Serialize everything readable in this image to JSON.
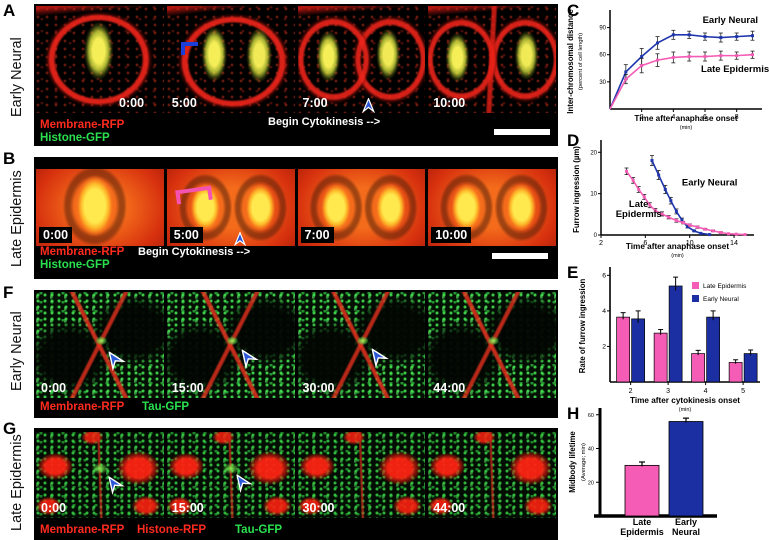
{
  "letters": {
    "C": "C",
    "D": "D",
    "E": "E",
    "H": "H"
  },
  "panels": {
    "A": {
      "letter": "A",
      "side_label": "Early Neural",
      "frames": [
        {
          "time": "0:00"
        },
        {
          "time": "5:00"
        },
        {
          "time": "7:00"
        },
        {
          "time": "10:00"
        }
      ],
      "channels": [
        {
          "text": "Membrane-RFP",
          "color": "#ff2b1e"
        },
        {
          "text": "Histone-GFP",
          "color": "#2ae04e"
        }
      ],
      "caption": "Begin Cytokinesis -->"
    },
    "B": {
      "letter": "B",
      "side_label": "Late Epidermis",
      "frames": [
        {
          "time": "0:00"
        },
        {
          "time": "5:00"
        },
        {
          "time": "7:00"
        },
        {
          "time": "10:00"
        }
      ],
      "channels": [
        {
          "text": "Membrane-RFP",
          "color": "#ff2b1e"
        },
        {
          "text": "Histone-GFP",
          "color": "#2ae04e"
        }
      ],
      "caption": "Begin Cytokinesis -->"
    },
    "F": {
      "letter": "F",
      "side_label": "Early Neural",
      "frames": [
        {
          "time": "0:00"
        },
        {
          "time": "15:00"
        },
        {
          "time": "30:00"
        },
        {
          "time": "44:00"
        }
      ],
      "channels": [
        {
          "text": "Membrane-RFP",
          "color": "#ff2b1e"
        },
        {
          "text": "Tau-GFP",
          "color": "#2ae04e"
        }
      ]
    },
    "G": {
      "letter": "G",
      "side_label": "Late Epidermis",
      "frames": [
        {
          "time": "0:00"
        },
        {
          "time": "15:00"
        },
        {
          "time": "30:00"
        },
        {
          "time": "44:00"
        }
      ],
      "channels": [
        {
          "text": "Membrane-RFP",
          "color": "#ff2b1e"
        },
        {
          "text": "Histone-RFP",
          "color": "#ff2b1e"
        },
        {
          "text": "Tau-GFP",
          "color": "#2ae04e"
        }
      ]
    }
  },
  "chart_data": [
    {
      "id": "C",
      "type": "line",
      "ylabel": "Inter-chromosomal distance",
      "ylabel2": "(percent of cell length)",
      "xlabel": "Time after anaphase onset",
      "xlabel2": "(min)",
      "xlim": [
        0,
        9.6
      ],
      "ylim": [
        0,
        105
      ],
      "xticks": [
        2,
        4,
        6,
        8
      ],
      "yticks": [
        30,
        60,
        90
      ],
      "grid": false,
      "legend": "inline-annotations",
      "series": [
        {
          "name": "Early Neural",
          "color": "#1f35ad",
          "x": [
            0,
            1,
            2,
            3,
            4,
            5,
            6,
            7,
            8,
            9
          ],
          "y": [
            0,
            41,
            58,
            73,
            82,
            82,
            80,
            79,
            80,
            81
          ],
          "err": [
            0,
            8,
            9,
            7,
            5,
            4,
            4,
            5,
            4,
            5
          ],
          "label": {
            "text": "Early Neural",
            "x": 7.6,
            "y": 95,
            "anchor": "middle"
          }
        },
        {
          "name": "Late Epidermis",
          "color": "#f55cb5",
          "x": [
            0,
            1,
            2,
            3,
            4,
            5,
            6,
            7,
            8,
            9
          ],
          "y": [
            0,
            33,
            48,
            54,
            57,
            58,
            58,
            59,
            59,
            60
          ],
          "err": [
            0,
            5,
            8,
            7,
            6,
            5,
            5,
            5,
            4,
            4
          ],
          "label": {
            "text": "Late Epidermis",
            "x": 7.9,
            "y": 41,
            "anchor": "middle"
          }
        }
      ]
    },
    {
      "id": "D",
      "type": "line",
      "ylabel": "Furrow ingression (µm)",
      "xlabel": "Time after anaphase onset",
      "xlabel2": "(min)",
      "xlim": [
        2,
        15.8
      ],
      "ylim": [
        0,
        22
      ],
      "xticks": [
        2,
        6,
        10,
        14
      ],
      "yticks": [
        0,
        10,
        20
      ],
      "grid": false,
      "legend": "inline-annotations",
      "series": [
        {
          "name": "Early Neural",
          "color": "#1f35ad",
          "x": [
            6.6,
            7.2,
            7.8,
            8.3,
            8.8,
            9.3,
            9.8,
            10.4,
            11,
            11.8
          ],
          "y": [
            18,
            14.5,
            11,
            8.3,
            5.7,
            3.6,
            2,
            1,
            0.4,
            0.1
          ],
          "err": [
            1.2,
            1.1,
            1,
            0.8,
            0.6,
            0.5,
            0.3,
            0.2,
            0.1,
            0.1
          ],
          "label": {
            "text": "Early Neural",
            "x": 9.3,
            "y": 12,
            "anchor": "start"
          }
        },
        {
          "name": "Late Epidermis",
          "color": "#f55cb5",
          "x": [
            4.3,
            4.9,
            5.4,
            5.9,
            6.4,
            6.9,
            7.5,
            8.1,
            8.8,
            9.4,
            10,
            10.7,
            11.4,
            12.1,
            12.8,
            13.5,
            14.2,
            15
          ],
          "y": [
            15.4,
            13.2,
            11,
            9.2,
            7.2,
            5.9,
            5.1,
            4.3,
            3.5,
            3,
            2.4,
            1.9,
            1.4,
            1,
            0.6,
            0.3,
            0.2,
            0.1
          ],
          "err": [
            0.8,
            0.7,
            0.7,
            0.6,
            0.6,
            0.5,
            0.5,
            0.4,
            0.4,
            0.3,
            0.3,
            0.3,
            0.2,
            0.2,
            0.2,
            0.1,
            0.1,
            0.1
          ],
          "label": {
            "text": "Late\nEpidermis",
            "x": 5.4,
            "y": 6.8,
            "anchor": "middle"
          }
        }
      ]
    },
    {
      "id": "E",
      "type": "grouped_bar",
      "ylabel": "Rate of furrow ingression",
      "xlabel": "Time after cytokinesis onset",
      "xlabel2": "(min)",
      "categories": [
        "2",
        "3",
        "4",
        "5"
      ],
      "ylim": [
        0,
        6.3
      ],
      "yticks": [
        2,
        4,
        6
      ],
      "grid": false,
      "legend": "top-right",
      "series": [
        {
          "name": "Late Epidermis",
          "color": "#f55cb5",
          "values": [
            3.65,
            2.75,
            1.6,
            1.1
          ],
          "err": [
            0.25,
            0.2,
            0.18,
            0.15
          ]
        },
        {
          "name": "Early Neural",
          "color": "#1b2fa3",
          "values": [
            3.55,
            5.4,
            3.65,
            1.6
          ],
          "err": [
            0.45,
            0.5,
            0.35,
            0.2
          ]
        }
      ]
    },
    {
      "id": "H",
      "type": "bar",
      "ylabel": "Midbody lifetime",
      "ylabel2": "(Average; min)",
      "categories": [
        "Late\nEpidermis",
        "Early\nNeural"
      ],
      "values": [
        30,
        56
      ],
      "err": [
        2,
        2
      ],
      "colors": [
        "#f55cb5",
        "#1b2fa3"
      ],
      "ylim": [
        0,
        64
      ],
      "yticks": [
        20,
        40,
        60
      ],
      "grid": false
    }
  ]
}
